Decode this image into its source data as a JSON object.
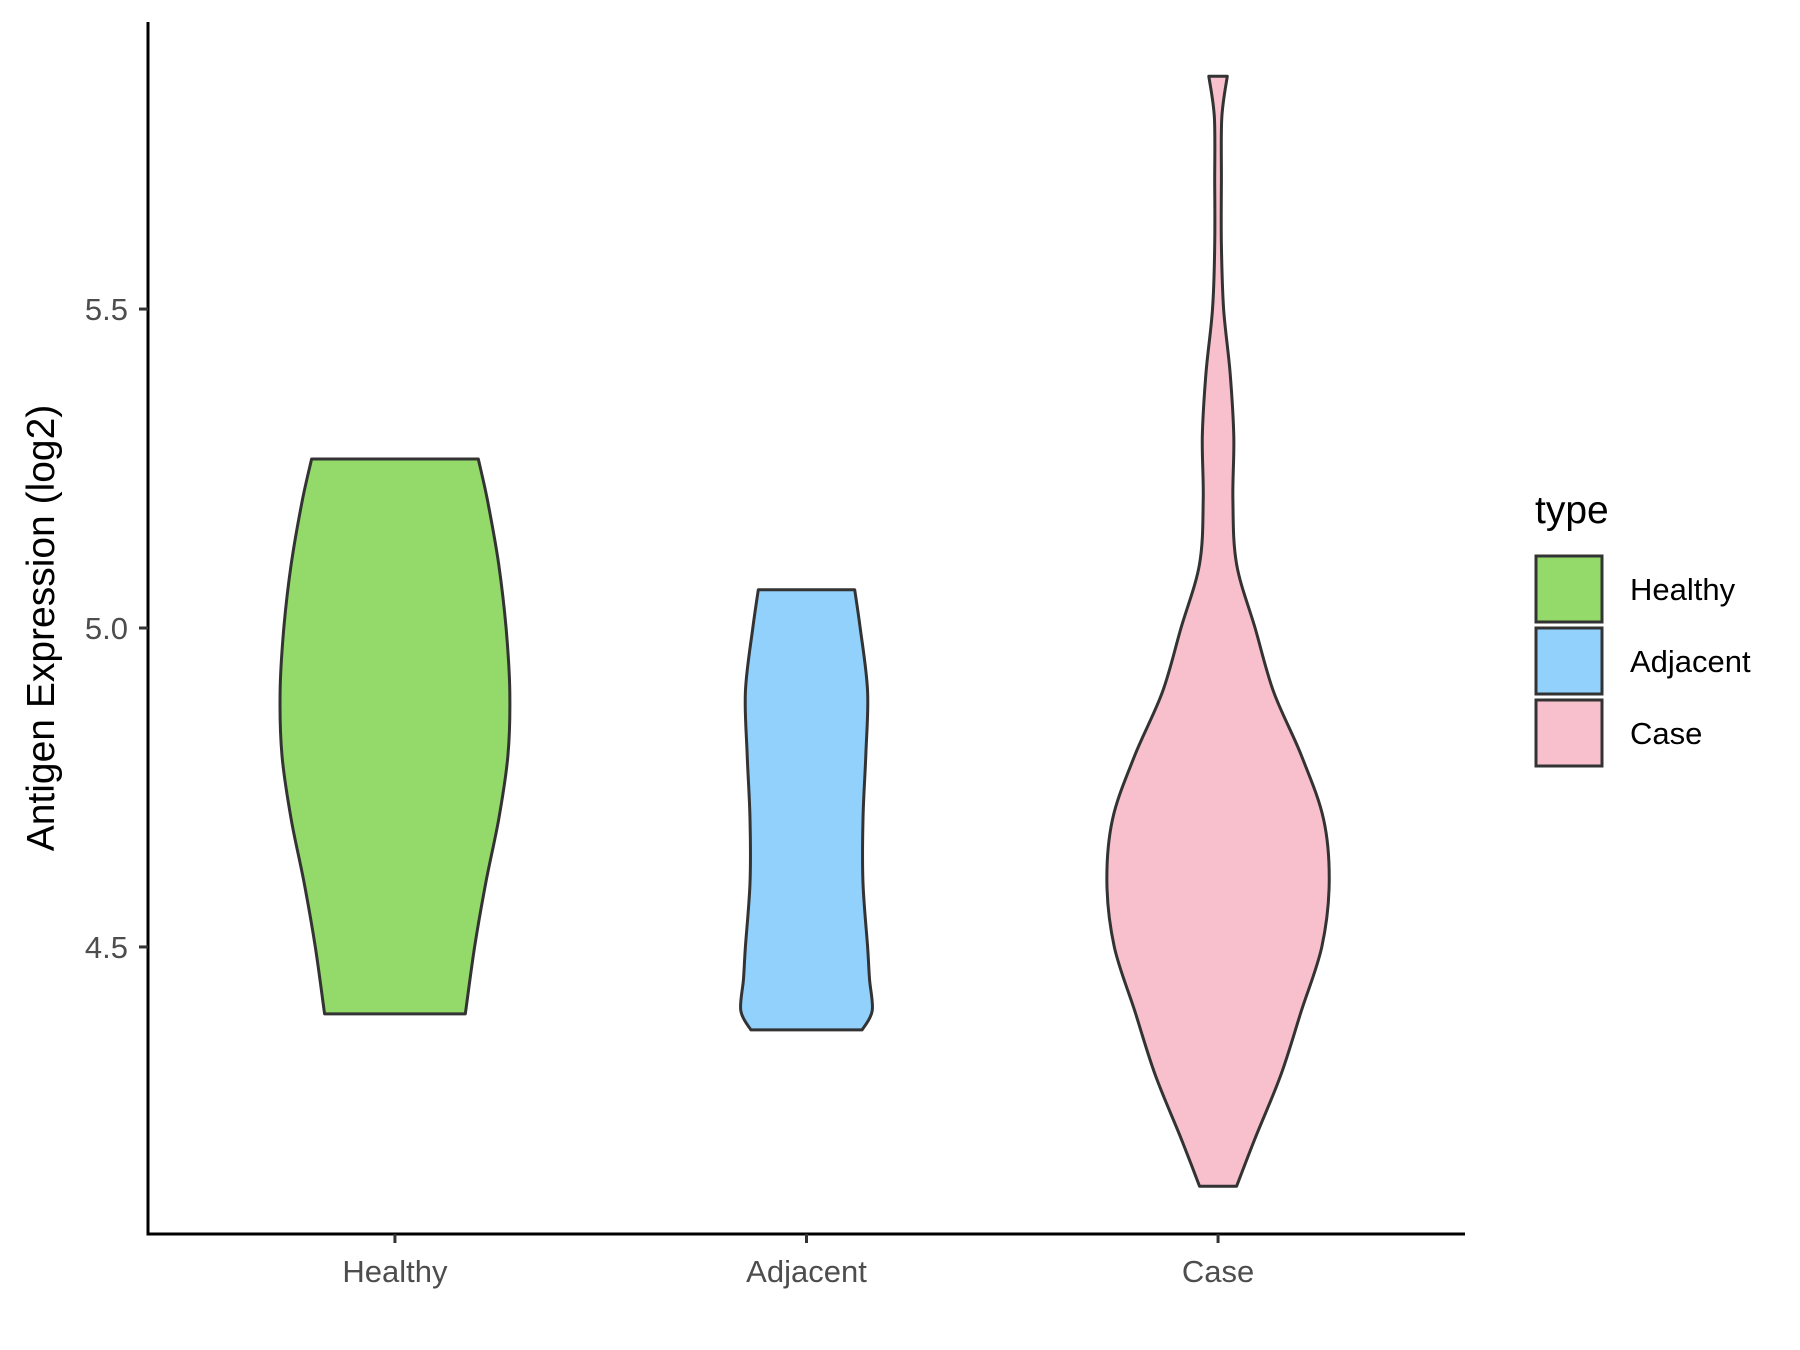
{
  "chart_data": {
    "type": "violin",
    "title": "",
    "xlabel": "",
    "ylabel": "Antigen Expression (log2)",
    "categories": [
      "Healthy",
      "Adjacent",
      "Case"
    ],
    "ylim": [
      4.05,
      5.95
    ],
    "y_ticks": [
      4.5,
      5.0,
      5.5
    ],
    "y_tick_labels": [
      "4.5",
      "5.0",
      "5.5"
    ],
    "grid": false,
    "legend": {
      "title": "type",
      "position": "right",
      "entries": [
        "Healthy",
        "Adjacent",
        "Case"
      ]
    },
    "series": [
      {
        "category": "Healthy",
        "color": "#93DA6A",
        "min": 4.395,
        "max": 5.265,
        "density_profile": [
          [
            4.395,
            0.38
          ],
          [
            4.5,
            0.43
          ],
          [
            4.6,
            0.49
          ],
          [
            4.7,
            0.56
          ],
          [
            4.8,
            0.61
          ],
          [
            4.9,
            0.62
          ],
          [
            5.0,
            0.6
          ],
          [
            5.1,
            0.56
          ],
          [
            5.2,
            0.5
          ],
          [
            5.265,
            0.45
          ]
        ]
      },
      {
        "category": "Adjacent",
        "color": "#92D1FB",
        "min": 4.37,
        "max": 5.06,
        "density_profile": [
          [
            4.37,
            0.3
          ],
          [
            4.4,
            0.355
          ],
          [
            4.45,
            0.34
          ],
          [
            4.5,
            0.33
          ],
          [
            4.6,
            0.305
          ],
          [
            4.7,
            0.305
          ],
          [
            4.8,
            0.32
          ],
          [
            4.9,
            0.33
          ],
          [
            5.0,
            0.29
          ],
          [
            5.06,
            0.26
          ]
        ]
      },
      {
        "category": "Case",
        "color": "#F7C0CC",
        "min": 4.125,
        "max": 5.865,
        "density_profile": [
          [
            4.125,
            0.1
          ],
          [
            4.2,
            0.2
          ],
          [
            4.3,
            0.34
          ],
          [
            4.4,
            0.45
          ],
          [
            4.5,
            0.56
          ],
          [
            4.6,
            0.6
          ],
          [
            4.7,
            0.57
          ],
          [
            4.8,
            0.45
          ],
          [
            4.9,
            0.3
          ],
          [
            5.0,
            0.2
          ],
          [
            5.1,
            0.1
          ],
          [
            5.2,
            0.08
          ],
          [
            5.3,
            0.085
          ],
          [
            5.4,
            0.065
          ],
          [
            5.5,
            0.03
          ],
          [
            5.6,
            0.018
          ],
          [
            5.7,
            0.018
          ],
          [
            5.8,
            0.02
          ],
          [
            5.865,
            0.05
          ]
        ]
      }
    ]
  }
}
